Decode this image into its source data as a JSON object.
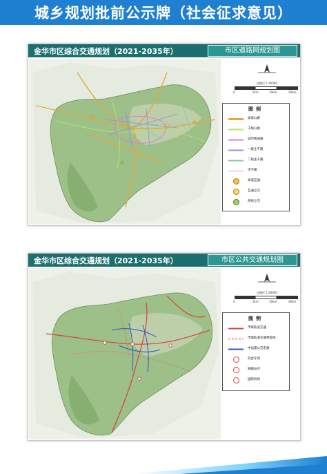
{
  "banner": {
    "title": "城乡规划批前公示牌（社会征求意见）"
  },
  "panels": [
    {
      "title": "金华市区综合交通规划（2021-2035年）",
      "subtitle": "市区道路网规划图",
      "scale_text": "比例尺 1:26000",
      "scale_ticks": [
        "0",
        "5km",
        "10km",
        "20km"
      ],
      "legend_title": "图例",
      "legend": [
        {
          "label": "高速公路",
          "color": "#e8a63c"
        },
        {
          "label": "干线公路",
          "color": "#b5e36a"
        },
        {
          "label": "城市快速路",
          "color": "#e57ad0"
        },
        {
          "label": "一级主干路",
          "color": "#8f8fe8"
        },
        {
          "label": "二级主干路",
          "color": "#7cc8a4"
        },
        {
          "label": "次干路",
          "color": "#c8a0d8"
        },
        {
          "label": "高速互通",
          "color": "#f2c14e"
        },
        {
          "label": "互通立交",
          "color": "#f5e05a"
        },
        {
          "label": "简易立交",
          "color": "#9ed36a"
        }
      ]
    },
    {
      "title": "金华市区综合交通规划（2021-2035年）",
      "subtitle": "市区公共交通规划图",
      "scale_text": "比例尺 1:26000",
      "scale_ticks": [
        "0",
        "5km",
        "10km",
        "20km"
      ],
      "legend_title": "图例",
      "legend": [
        {
          "label": "市域轨道交通",
          "color": "#d9433a"
        },
        {
          "label": "市域轨道交通预留线",
          "color": "#e07a74"
        },
        {
          "label": "中运量公交走廊",
          "color": "#2c55c9"
        },
        {
          "label": "综合车场",
          "color": "#d9433a"
        },
        {
          "label": "铁路站点",
          "color": "#d9433a"
        },
        {
          "label": "国际机场",
          "color": "#d9433a"
        }
      ]
    }
  ]
}
